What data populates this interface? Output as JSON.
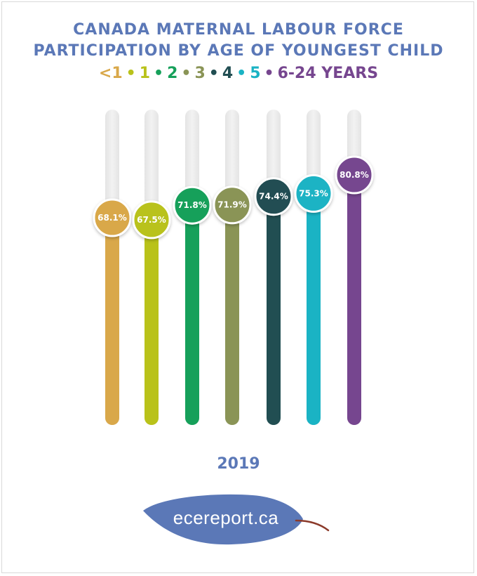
{
  "title_line1": "CANADA MATERNAL LABOUR FORCE",
  "title_line2": "PARTICIPATION BY AGE OF YOUNGEST CHILD",
  "footer_year": "2019",
  "logo_text": "ecereport.ca",
  "legend": [
    {
      "label": "<1",
      "color": "#d9a84a"
    },
    {
      "label": "1",
      "color": "#b9c21a"
    },
    {
      "label": "2",
      "color": "#16a05a"
    },
    {
      "label": "3",
      "color": "#8a9456"
    },
    {
      "label": "4",
      "color": "#214e52"
    },
    {
      "label": "5",
      "color": "#1ab3c4"
    },
    {
      "label": "6-24 YEARS",
      "color": "#76468f"
    }
  ],
  "chart_data": {
    "type": "bar",
    "categories": [
      "<1",
      "1",
      "2",
      "3",
      "4",
      "5",
      "6-24"
    ],
    "values": [
      68.1,
      67.5,
      71.8,
      71.9,
      74.4,
      75.3,
      80.8
    ],
    "value_labels": [
      "68.1%",
      "67.5%",
      "71.8%",
      "71.9%",
      "74.4%",
      "75.3%",
      "80.8%"
    ],
    "colors": [
      "#d9a84a",
      "#b9c21a",
      "#16a05a",
      "#8a9456",
      "#214e52",
      "#1ab3c4",
      "#76468f"
    ],
    "xlabel": "2019",
    "ylabel": "",
    "grid": false
  }
}
